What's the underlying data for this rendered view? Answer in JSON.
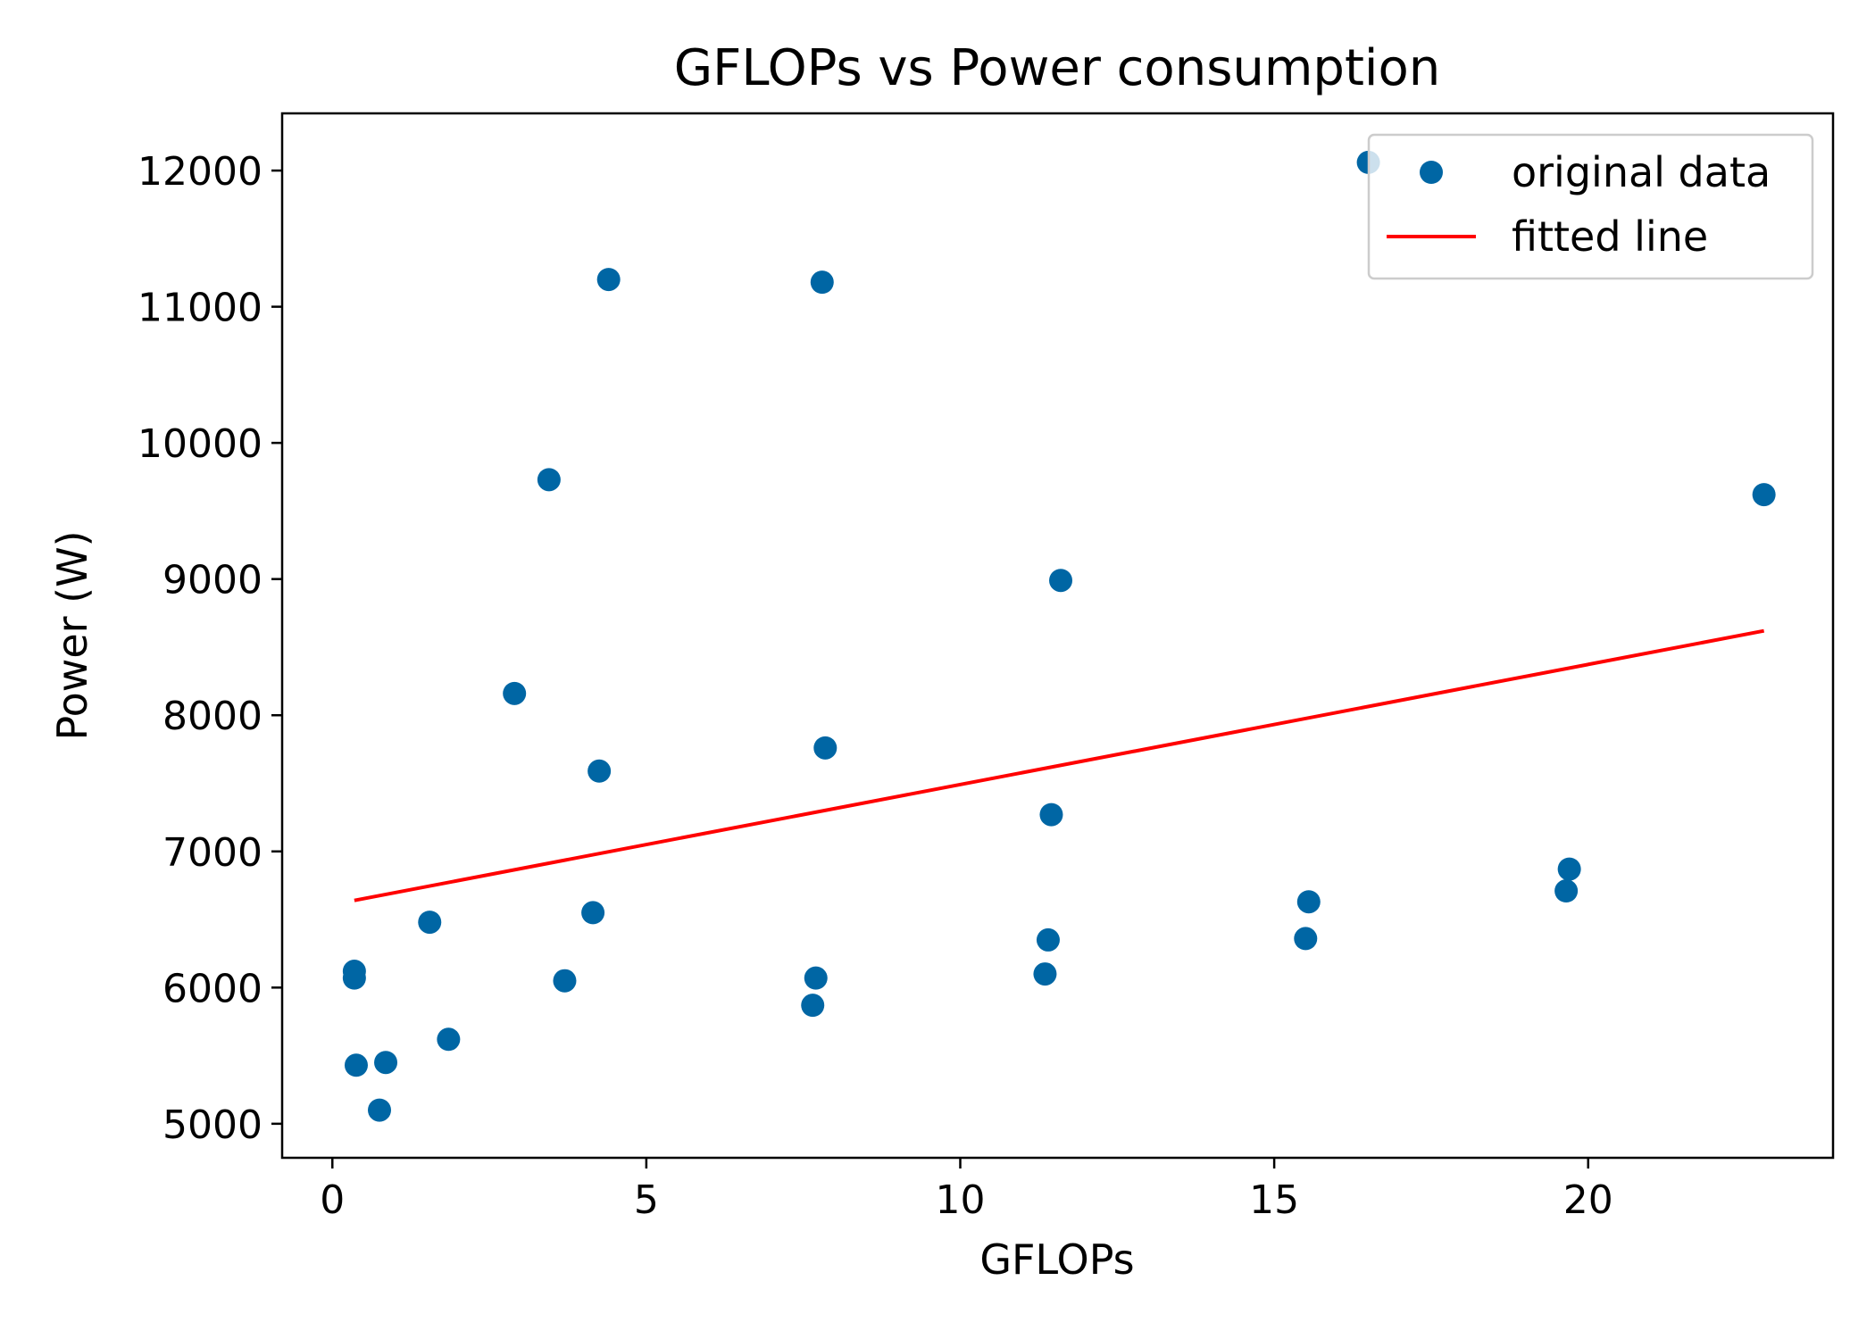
{
  "chart_data": {
    "type": "scatter",
    "title": "GFLOPs vs Power consumption",
    "xlabel": "GFLOPs",
    "ylabel": "Power (W)",
    "xlim": [
      -0.8,
      23.9
    ],
    "ylim": [
      4750,
      12420
    ],
    "x_ticks": [
      0,
      5,
      10,
      15,
      20
    ],
    "x_tick_labels": [
      "0",
      "5",
      "10",
      "15",
      "20"
    ],
    "y_ticks": [
      5000,
      6000,
      7000,
      8000,
      9000,
      10000,
      11000,
      12000
    ],
    "y_tick_labels": [
      "5000",
      "6000",
      "7000",
      "8000",
      "9000",
      "10000",
      "11000",
      "12000"
    ],
    "grid": false,
    "legend_position": "upper right",
    "series": [
      {
        "name": "original data",
        "kind": "scatter",
        "color": "#0066a4",
        "points": [
          {
            "x": 0.35,
            "y": 6120
          },
          {
            "x": 0.35,
            "y": 6070
          },
          {
            "x": 0.38,
            "y": 5430
          },
          {
            "x": 0.75,
            "y": 5100
          },
          {
            "x": 0.85,
            "y": 5450
          },
          {
            "x": 1.55,
            "y": 6480
          },
          {
            "x": 1.85,
            "y": 5620
          },
          {
            "x": 2.9,
            "y": 8160
          },
          {
            "x": 3.45,
            "y": 9730
          },
          {
            "x": 3.7,
            "y": 6050
          },
          {
            "x": 4.15,
            "y": 6550
          },
          {
            "x": 4.25,
            "y": 7590
          },
          {
            "x": 4.4,
            "y": 11200
          },
          {
            "x": 7.65,
            "y": 5870
          },
          {
            "x": 7.7,
            "y": 6070
          },
          {
            "x": 7.8,
            "y": 11180
          },
          {
            "x": 7.85,
            "y": 7760
          },
          {
            "x": 11.35,
            "y": 6100
          },
          {
            "x": 11.4,
            "y": 6350
          },
          {
            "x": 11.45,
            "y": 7270
          },
          {
            "x": 11.6,
            "y": 8990
          },
          {
            "x": 15.5,
            "y": 6360
          },
          {
            "x": 15.55,
            "y": 6630
          },
          {
            "x": 16.5,
            "y": 12060
          },
          {
            "x": 19.65,
            "y": 6710
          },
          {
            "x": 19.7,
            "y": 6870
          },
          {
            "x": 22.8,
            "y": 9620
          }
        ]
      },
      {
        "name": "fitted line",
        "kind": "line",
        "color": "#ff0000",
        "points": [
          {
            "x": 0.35,
            "y": 6640
          },
          {
            "x": 22.8,
            "y": 8620
          }
        ]
      }
    ]
  }
}
